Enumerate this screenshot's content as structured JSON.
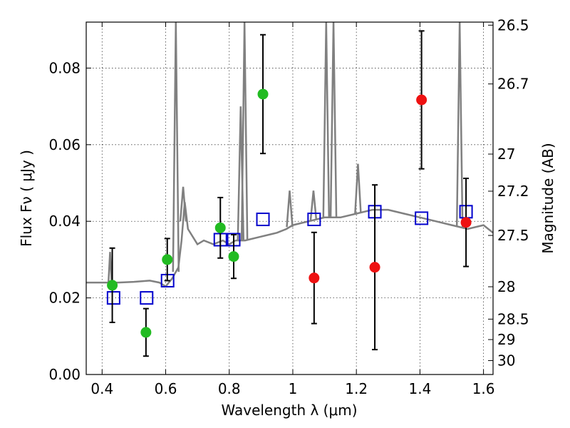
{
  "chart_data": {
    "type": "scatter",
    "xlabel": "Wavelength  λ (μm)",
    "ylabel": "Flux  Fν  ( μJy )",
    "ylabel_right": "Magnitude (AB)",
    "xlim": [
      0.35,
      1.63
    ],
    "ylim": [
      0.0,
      0.092
    ],
    "x_ticks": [
      0.4,
      0.6,
      0.8,
      1.0,
      1.2,
      1.4,
      1.6
    ],
    "x_tick_labels": [
      "0.4",
      "0.6",
      "0.8",
      "1",
      "1.2",
      "1.4",
      "1.6"
    ],
    "y_ticks": [
      0.0,
      0.02,
      0.04,
      0.06,
      0.08
    ],
    "y_tick_labels": [
      "0.00",
      "0.02",
      "0.04",
      "0.06",
      "0.08"
    ],
    "right_ticks": [
      {
        "label": "26.5",
        "mag": 26.5
      },
      {
        "label": "26.7",
        "mag": 26.7
      },
      {
        "label": "27",
        "mag": 27.0
      },
      {
        "label": "27.2",
        "mag": 27.2
      },
      {
        "label": "27.5",
        "mag": 27.5
      },
      {
        "label": "28",
        "mag": 28.0
      },
      {
        "label": "28.5",
        "mag": 28.5
      },
      {
        "label": "29",
        "mag": 29.0
      },
      {
        "label": "30",
        "mag": 30.0
      }
    ],
    "grid": true,
    "series": [
      {
        "marker": "line",
        "color": "#808080",
        "points": [
          [
            0.35,
            0.024
          ],
          [
            0.4,
            0.024
          ],
          [
            0.42,
            0.024
          ],
          [
            0.425,
            0.032
          ],
          [
            0.43,
            0.024
          ],
          [
            0.45,
            0.024
          ],
          [
            0.5,
            0.0242
          ],
          [
            0.55,
            0.0245
          ],
          [
            0.58,
            0.024
          ],
          [
            0.6,
            0.023
          ],
          [
            0.62,
            0.025
          ],
          [
            0.64,
            0.028
          ],
          [
            0.65,
            0.035
          ],
          [
            0.66,
            0.045
          ],
          [
            0.67,
            0.038
          ],
          [
            0.7,
            0.034
          ],
          [
            0.72,
            0.035
          ],
          [
            0.75,
            0.034
          ],
          [
            0.78,
            0.035
          ],
          [
            0.8,
            0.034
          ],
          [
            0.82,
            0.035
          ],
          [
            0.85,
            0.035
          ],
          [
            0.9,
            0.036
          ],
          [
            0.95,
            0.037
          ],
          [
            0.98,
            0.038
          ],
          [
            1.0,
            0.039
          ],
          [
            1.05,
            0.04
          ],
          [
            1.1,
            0.041
          ],
          [
            1.15,
            0.041
          ],
          [
            1.2,
            0.042
          ],
          [
            1.25,
            0.043
          ],
          [
            1.3,
            0.043
          ],
          [
            1.35,
            0.042
          ],
          [
            1.4,
            0.041
          ],
          [
            1.45,
            0.04
          ],
          [
            1.5,
            0.039
          ],
          [
            1.55,
            0.038
          ],
          [
            1.6,
            0.039
          ],
          [
            1.63,
            0.037
          ]
        ],
        "spikes": [
          [
            0.632,
            0.092
          ],
          [
            0.655,
            0.049
          ],
          [
            0.836,
            0.07
          ],
          [
            0.848,
            0.092
          ],
          [
            0.99,
            0.048
          ],
          [
            1.065,
            0.048
          ],
          [
            1.105,
            0.092
          ],
          [
            1.128,
            0.092
          ],
          [
            1.205,
            0.055
          ],
          [
            1.525,
            0.092
          ]
        ]
      },
      {
        "marker": "square",
        "color": "#0000cc",
        "points": [
          [
            0.436,
            0.02
          ],
          [
            0.54,
            0.02
          ],
          [
            0.606,
            0.0245
          ],
          [
            0.772,
            0.0352
          ],
          [
            0.814,
            0.0352
          ],
          [
            0.906,
            0.0405
          ],
          [
            1.067,
            0.0405
          ],
          [
            1.258,
            0.0425
          ],
          [
            1.405,
            0.0408
          ],
          [
            1.545,
            0.0425
          ]
        ]
      },
      {
        "marker": "circle",
        "color": "#22bb22",
        "points": [
          [
            0.432,
            0.0233,
            0.0097
          ],
          [
            0.538,
            0.011,
            0.0062
          ],
          [
            0.605,
            0.03,
            0.0055
          ],
          [
            0.772,
            0.0383,
            0.0079
          ],
          [
            0.814,
            0.0308,
            0.0057
          ],
          [
            0.906,
            0.0732,
            0.0155
          ]
        ]
      },
      {
        "marker": "circle",
        "color": "#ee1111",
        "points": [
          [
            1.067,
            0.0252,
            0.0119
          ],
          [
            1.258,
            0.028,
            0.0215
          ],
          [
            1.405,
            0.0717,
            0.018
          ],
          [
            1.545,
            0.0397,
            0.0115
          ]
        ]
      }
    ]
  }
}
